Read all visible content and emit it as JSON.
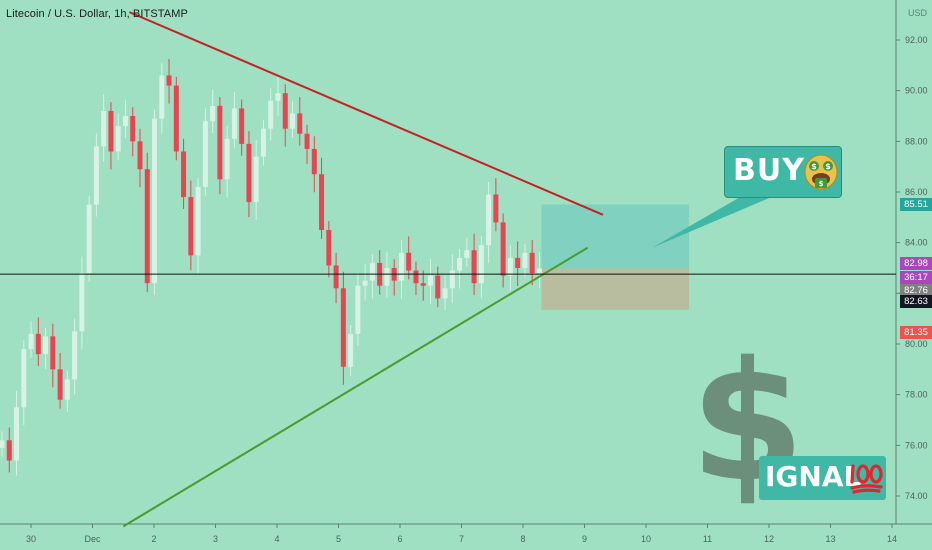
{
  "header": {
    "symbol_title": "Litecoin / U.S. Dollar, 1h, BITSTAMP"
  },
  "price_axis": {
    "currency": "USD"
  },
  "annotations": {
    "buy_label": "BUY",
    "signal_dollar": "$",
    "signal_label": "IGNAL",
    "buy_emoji": "money-mouth-face-icon",
    "signal_emoji": "hundred-points-icon"
  },
  "badges": [
    {
      "label": "85.51",
      "color": "#26a69a"
    },
    {
      "label": "82.98",
      "color": "#ab47bc"
    },
    {
      "label": "36:17",
      "color": "#ab47bc"
    },
    {
      "label": "82.76",
      "color": "#808080"
    },
    {
      "label": "82.63",
      "color": "#131722"
    },
    {
      "label": "81.35",
      "color": "#ef5350"
    }
  ],
  "colors": {
    "background": "#9ee0c1",
    "candle_up": "#d8f2e5",
    "candle_down": "#e64552",
    "resistance_line": "#c42021",
    "support_line": "#4a9a2c",
    "target_zone": "#7ccfc0",
    "stop_zone": "#b9b99a",
    "callout_fill": "#3fb8a5"
  },
  "chart_data": {
    "type": "candlestick",
    "title": "Litecoin / U.S. Dollar, 1h, BITSTAMP",
    "y_unit": "USD",
    "ylim": [
      72.5,
      93.5
    ],
    "y_ticks": [
      74.0,
      76.0,
      78.0,
      80.0,
      82.0,
      84.0,
      86.0,
      88.0,
      90.0,
      92.0
    ],
    "x_ticks": [
      "30",
      "Dec",
      "2",
      "3",
      "4",
      "5",
      "6",
      "7",
      "8",
      "9",
      "10",
      "11",
      "12",
      "13",
      "14"
    ],
    "trendlines": [
      {
        "role": "resistance",
        "from": [
          1.6,
          93.1
        ],
        "to": [
          9.3,
          85.1
        ]
      },
      {
        "role": "support",
        "from": [
          1.5,
          72.8
        ],
        "to": [
          9.05,
          83.8
        ]
      }
    ],
    "horizontal_level": 82.76,
    "trade_zones": {
      "entry": 82.98,
      "target": 85.51,
      "stop": 81.35,
      "start_x": 8.3,
      "end_x": 10.7
    },
    "candle_closes": [
      76.2,
      75.4,
      77.5,
      79.8,
      80.4,
      79.6,
      80.3,
      79.0,
      77.8,
      78.6,
      80.5,
      82.8,
      85.5,
      87.8,
      89.2,
      87.6,
      88.6,
      89.0,
      88.0,
      86.9,
      82.4,
      88.9,
      90.6,
      90.2,
      87.6,
      85.8,
      83.5,
      86.2,
      88.8,
      89.4,
      86.5,
      88.1,
      89.3,
      87.9,
      85.6,
      87.4,
      88.5,
      89.6,
      89.9,
      88.5,
      89.1,
      88.3,
      87.7,
      86.7,
      84.5,
      83.1,
      82.2,
      79.1,
      80.4,
      82.3,
      82.5,
      83.2,
      82.3,
      83.0,
      82.5,
      83.6,
      82.9,
      82.4,
      82.3,
      82.7,
      81.8,
      82.2,
      82.9,
      83.4,
      83.7,
      82.4,
      83.9,
      85.9,
      84.8,
      82.7,
      83.4,
      83.0,
      83.6,
      82.8,
      82.98
    ]
  }
}
